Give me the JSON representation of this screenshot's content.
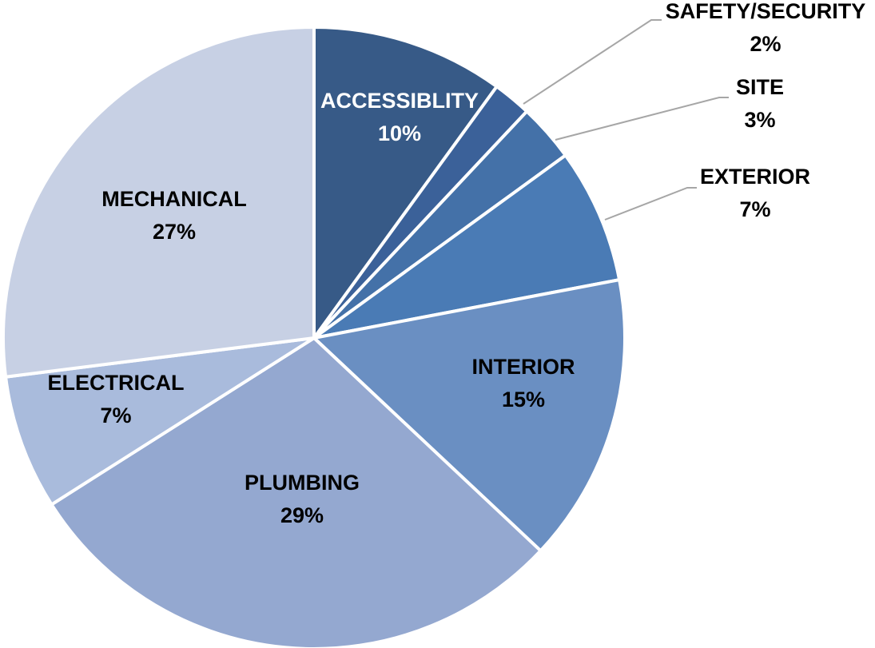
{
  "chart_data": {
    "type": "pie",
    "categories": [
      "ACCESSIBLITY",
      "SAFETY/SECURITY",
      "SITE",
      "EXTERIOR",
      "INTERIOR",
      "PLUMBING",
      "ELECTRICAL",
      "MECHANICAL"
    ],
    "values": [
      10,
      2,
      3,
      7,
      15,
      29,
      7,
      27
    ],
    "value_labels": [
      "10%",
      "2%",
      "3%",
      "7%",
      "15%",
      "29%",
      "7%",
      "27%"
    ],
    "colors": [
      "#375a87",
      "#3b6199",
      "#4471a8",
      "#4a7bb5",
      "#6a8fc2",
      "#94a8d0",
      "#a9bbdc",
      "#c7d0e4"
    ]
  }
}
